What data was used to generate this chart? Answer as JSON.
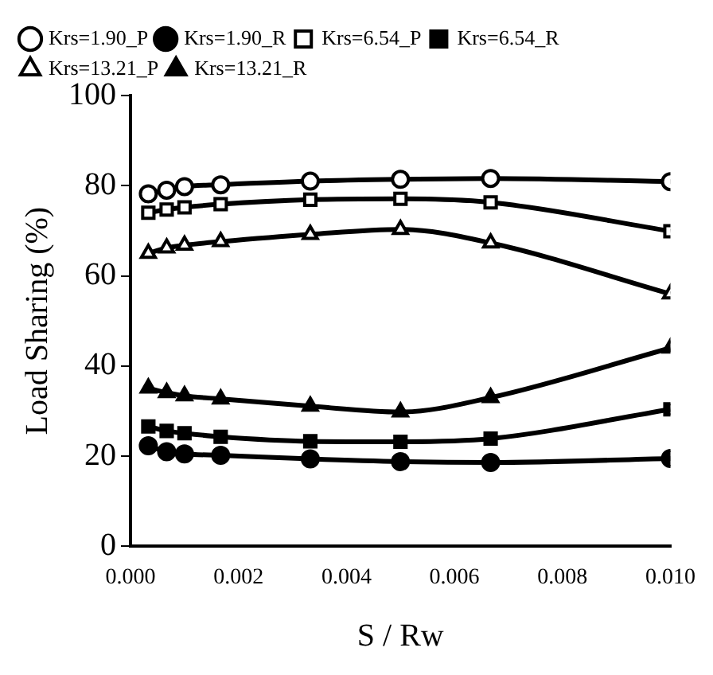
{
  "chart_data": {
    "type": "line",
    "xlabel": "S / Rw",
    "ylabel": "Load Sharing (%)",
    "x": [
      0.00033,
      0.00067,
      0.001,
      0.00167,
      0.00333,
      0.005,
      0.00667,
      0.01
    ],
    "xlim": [
      0,
      0.01
    ],
    "xticks": [
      {
        "value": 0,
        "label": "0.000"
      },
      {
        "value": 0.002,
        "label": "0.002"
      },
      {
        "value": 0.004,
        "label": "0.004"
      },
      {
        "value": 0.006,
        "label": "0.006"
      },
      {
        "value": 0.008,
        "label": "0.008"
      },
      {
        "value": 0.01,
        "label": "0.010"
      }
    ],
    "ylim": [
      0,
      100
    ],
    "yticks": [
      0,
      20,
      40,
      60,
      80,
      100
    ],
    "grid": false,
    "legend": "top left",
    "series": [
      {
        "name": "Krs=1.90_P",
        "color": "#000000",
        "marker": "circle",
        "values": [
          78.2,
          79.0,
          79.8,
          80.2,
          81.0,
          81.4,
          81.6,
          80.9
        ]
      },
      {
        "name": "Krs=1.90_R",
        "color": "#000000",
        "marker": "circle",
        "values": [
          22.3,
          21.0,
          20.5,
          20.2,
          19.4,
          18.8,
          18.6,
          19.5
        ]
      },
      {
        "name": "Krs=6.54_P",
        "color": "#000000",
        "marker": "square",
        "values": [
          74.0,
          74.7,
          75.2,
          75.9,
          76.9,
          77.1,
          76.3,
          69.9
        ]
      },
      {
        "name": "Krs=6.54_R",
        "color": "#000000",
        "marker": "square",
        "values": [
          26.6,
          25.6,
          25.1,
          24.3,
          23.3,
          23.2,
          23.9,
          30.4
        ]
      },
      {
        "name": "Krs=13.21_P",
        "color": "#000000",
        "marker": "triangle",
        "values": [
          65.0,
          66.2,
          66.8,
          67.6,
          69.2,
          70.3,
          67.3,
          56.0
        ]
      },
      {
        "name": "Krs=13.21_R",
        "color": "#000000",
        "marker": "triangle",
        "values": [
          35.1,
          34.1,
          33.4,
          32.7,
          31.1,
          29.8,
          33.0,
          44.0
        ]
      }
    ]
  }
}
